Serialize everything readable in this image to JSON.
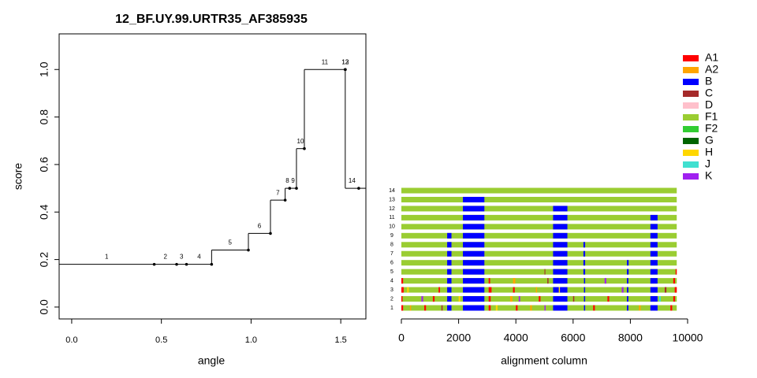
{
  "chart_data": [
    {
      "type": "step",
      "title": "12_BF.UY.99.URTR35_AF385935",
      "x_label": "angle",
      "y_label": "score",
      "step_labels": [
        "1",
        "2",
        "3",
        "4",
        "5",
        "6",
        "7",
        "8",
        "9",
        "10",
        "11",
        "12",
        "13",
        "14"
      ],
      "x": [
        0.46,
        0.585,
        0.64,
        0.78,
        0.985,
        1.108,
        1.19,
        1.215,
        1.253,
        1.297,
        1.525,
        1.525,
        1.525,
        1.6
      ],
      "values": [
        0.18,
        0.18,
        0.18,
        0.18,
        0.24,
        0.31,
        0.45,
        0.5,
        0.5,
        0.667,
        1.0,
        1.0,
        1.0,
        0.5
      ],
      "color": "#000000",
      "xlim": [
        -0.07,
        1.64
      ],
      "ylim": [
        -0.05,
        1.15
      ],
      "xticks": [
        {
          "value": 0,
          "label": "0.0"
        },
        {
          "value": 0.5,
          "label": "0.5"
        },
        {
          "value": 1,
          "label": "1.0"
        },
        {
          "value": 1.5,
          "label": "1.5"
        }
      ],
      "yticks": [
        {
          "value": 0,
          "label": "0.0"
        },
        {
          "value": 0.2,
          "label": "0.2"
        },
        {
          "value": 0.4,
          "label": "0.4"
        },
        {
          "value": 0.6,
          "label": "0.6"
        },
        {
          "value": 0.8,
          "label": "0.8"
        },
        {
          "value": 1,
          "label": "1.0"
        }
      ]
    },
    {
      "type": "alignment",
      "x_label": "alignment column",
      "xlim": [
        0,
        10000
      ],
      "xticks": [
        0,
        2000,
        4000,
        6000,
        8000,
        10000
      ],
      "legend": [
        {
          "name": "A1",
          "color": "#ff0000"
        },
        {
          "name": "A2",
          "color": "#ffa500"
        },
        {
          "name": "B",
          "color": "#0000ff"
        },
        {
          "name": "C",
          "color": "#a52a2a"
        },
        {
          "name": "D",
          "color": "#ffc0cb"
        },
        {
          "name": "F1",
          "color": "#9acd32"
        },
        {
          "name": "F2",
          "color": "#32cd32"
        },
        {
          "name": "G",
          "color": "#006400"
        },
        {
          "name": "H",
          "color": "#ffd700"
        },
        {
          "name": "J",
          "color": "#40e0d0"
        },
        {
          "name": "K",
          "color": "#a020f0"
        }
      ],
      "rows": [
        {
          "label": "1",
          "segments": [
            [
              0,
              9620,
              "F1"
            ],
            [
              1600,
              1750,
              "B"
            ],
            [
              2150,
              2900,
              "B"
            ],
            [
              5300,
              5800,
              "B"
            ],
            [
              8700,
              8950,
              "B"
            ],
            [
              0,
              60,
              "A1"
            ],
            [
              300,
              340,
              "A2"
            ],
            [
              800,
              860,
              "A1"
            ],
            [
              1400,
              1440,
              "C"
            ],
            [
              3050,
              3120,
              "A1"
            ],
            [
              3300,
              3360,
              "H"
            ],
            [
              4000,
              4060,
              "A1"
            ],
            [
              4500,
              4560,
              "A2"
            ],
            [
              5000,
              5040,
              "K"
            ],
            [
              6380,
              6420,
              "B"
            ],
            [
              6700,
              6760,
              "A1"
            ],
            [
              7880,
              7930,
              "B"
            ],
            [
              8300,
              8360,
              "A2"
            ],
            [
              9400,
              9460,
              "A1"
            ]
          ]
        },
        {
          "label": "2",
          "segments": [
            [
              0,
              9620,
              "F1"
            ],
            [
              1600,
              1750,
              "B"
            ],
            [
              2150,
              2900,
              "B"
            ],
            [
              5300,
              5800,
              "B"
            ],
            [
              8700,
              8950,
              "B"
            ],
            [
              0,
              40,
              "A1"
            ],
            [
              700,
              760,
              "K"
            ],
            [
              1100,
              1160,
              "A1"
            ],
            [
              2000,
              2060,
              "H"
            ],
            [
              3050,
              3120,
              "A1"
            ],
            [
              3800,
              3880,
              "A2"
            ],
            [
              4100,
              4150,
              "K"
            ],
            [
              4800,
              4860,
              "A1"
            ],
            [
              6000,
              6040,
              "C"
            ],
            [
              6380,
              6420,
              "B"
            ],
            [
              7200,
              7260,
              "A1"
            ],
            [
              7880,
              7930,
              "B"
            ],
            [
              9000,
              9060,
              "J"
            ],
            [
              9500,
              9560,
              "A1"
            ]
          ]
        },
        {
          "label": "3",
          "segments": [
            [
              0,
              9620,
              "F1"
            ],
            [
              1600,
              1750,
              "B"
            ],
            [
              2150,
              2900,
              "B"
            ],
            [
              5300,
              5800,
              "B"
            ],
            [
              8700,
              8950,
              "B"
            ],
            [
              0,
              80,
              "A1"
            ],
            [
              200,
              260,
              "H"
            ],
            [
              1300,
              1350,
              "A1"
            ],
            [
              3050,
              3150,
              "A1"
            ],
            [
              3900,
              3960,
              "A1"
            ],
            [
              4700,
              4740,
              "A2"
            ],
            [
              5500,
              5540,
              "H"
            ],
            [
              6380,
              6420,
              "B"
            ],
            [
              7700,
              7760,
              "K"
            ],
            [
              7880,
              7930,
              "B"
            ],
            [
              9200,
              9260,
              "C"
            ],
            [
              9550,
              9620,
              "A1"
            ]
          ]
        },
        {
          "label": "4",
          "segments": [
            [
              0,
              9620,
              "F1"
            ],
            [
              1600,
              1750,
              "B"
            ],
            [
              2150,
              2900,
              "B"
            ],
            [
              5300,
              5800,
              "B"
            ],
            [
              8700,
              8950,
              "B"
            ],
            [
              0,
              60,
              "A1"
            ],
            [
              3050,
              3100,
              "A1"
            ],
            [
              3900,
              3980,
              "A2"
            ],
            [
              5100,
              5140,
              "C"
            ],
            [
              6380,
              6420,
              "B"
            ],
            [
              7100,
              7160,
              "K"
            ],
            [
              7880,
              7930,
              "B"
            ],
            [
              9500,
              9560,
              "A1"
            ]
          ]
        },
        {
          "label": "5",
          "segments": [
            [
              0,
              9620,
              "F1"
            ],
            [
              1600,
              1750,
              "B"
            ],
            [
              2150,
              2900,
              "B"
            ],
            [
              5000,
              5030,
              "C"
            ],
            [
              5300,
              5800,
              "B"
            ],
            [
              6360,
              6420,
              "B"
            ],
            [
              7880,
              7940,
              "B"
            ],
            [
              8700,
              8950,
              "B"
            ],
            [
              9580,
              9620,
              "A1"
            ]
          ]
        },
        {
          "label": "6",
          "segments": [
            [
              0,
              9620,
              "F1"
            ],
            [
              1600,
              1750,
              "B"
            ],
            [
              2150,
              2900,
              "B"
            ],
            [
              5300,
              5800,
              "B"
            ],
            [
              6360,
              6420,
              "B"
            ],
            [
              7880,
              7940,
              "B"
            ],
            [
              8700,
              8950,
              "B"
            ]
          ]
        },
        {
          "label": "7",
          "segments": [
            [
              0,
              9620,
              "F1"
            ],
            [
              1600,
              1750,
              "B"
            ],
            [
              2150,
              2900,
              "B"
            ],
            [
              5300,
              5800,
              "B"
            ],
            [
              6360,
              6420,
              "B"
            ],
            [
              8700,
              8950,
              "B"
            ]
          ]
        },
        {
          "label": "8",
          "segments": [
            [
              0,
              9620,
              "F1"
            ],
            [
              1600,
              1750,
              "B"
            ],
            [
              2150,
              2900,
              "B"
            ],
            [
              5300,
              5800,
              "B"
            ],
            [
              6360,
              6420,
              "B"
            ],
            [
              8700,
              8950,
              "B"
            ]
          ]
        },
        {
          "label": "9",
          "segments": [
            [
              0,
              9620,
              "F1"
            ],
            [
              1600,
              1750,
              "B"
            ],
            [
              2150,
              2900,
              "B"
            ],
            [
              5300,
              5800,
              "B"
            ],
            [
              8700,
              8950,
              "B"
            ]
          ]
        },
        {
          "label": "10",
          "segments": [
            [
              0,
              9620,
              "F1"
            ],
            [
              2150,
              2900,
              "B"
            ],
            [
              5300,
              5800,
              "B"
            ],
            [
              8700,
              8950,
              "B"
            ]
          ]
        },
        {
          "label": "11",
          "segments": [
            [
              0,
              9620,
              "F1"
            ],
            [
              2150,
              2900,
              "B"
            ],
            [
              5300,
              5800,
              "B"
            ],
            [
              8700,
              8950,
              "B"
            ]
          ]
        },
        {
          "label": "12",
          "segments": [
            [
              0,
              9620,
              "F1"
            ],
            [
              2150,
              2900,
              "B"
            ],
            [
              5300,
              5800,
              "B"
            ]
          ]
        },
        {
          "label": "13",
          "segments": [
            [
              0,
              9620,
              "F1"
            ],
            [
              2150,
              2900,
              "B"
            ]
          ]
        },
        {
          "label": "14",
          "segments": [
            [
              0,
              9620,
              "F1"
            ]
          ]
        }
      ]
    }
  ]
}
